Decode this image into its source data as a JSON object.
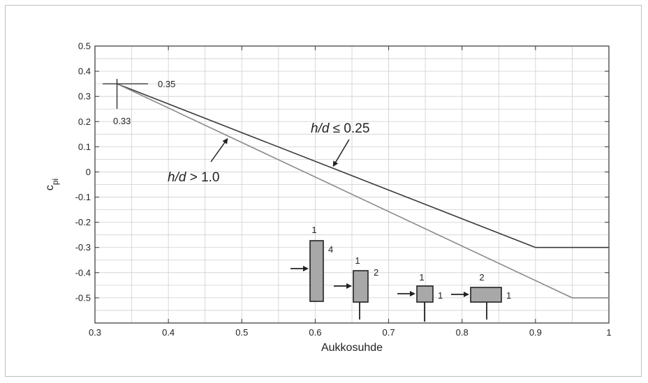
{
  "chart_data": {
    "type": "line",
    "xlabel": "Aukkosuhde",
    "ylabel": "c",
    "ylabel_sub": "pi",
    "xlim": [
      0.3,
      1.0
    ],
    "ylim": [
      -0.6,
      0.5
    ],
    "x_ticks": [
      0.3,
      0.4,
      0.5,
      0.6,
      0.7,
      0.8,
      0.9,
      1.0
    ],
    "x_tick_labels": [
      "0.3",
      "0.4",
      "0.5",
      "0.6",
      "0.7",
      "0.8",
      "0.9",
      "1"
    ],
    "y_ticks": [
      0.5,
      0.4,
      0.3,
      0.2,
      0.1,
      0.0,
      -0.1,
      -0.2,
      -0.3,
      -0.4,
      -0.5
    ],
    "y_tick_labels": [
      "0.5",
      "0.4",
      "0.3",
      "0.2",
      "0.1",
      "0",
      "-0.1",
      "-0.2",
      "-0.3",
      "-0.4",
      "-0.5"
    ],
    "grid": true,
    "series": [
      {
        "name": "h/d ≤ 0.25",
        "label_italic": "h/d",
        "label_rest": " ≤ 0.25",
        "color": "#3a3a3a",
        "x": [
          0.33,
          0.9,
          1.0
        ],
        "y": [
          0.35,
          -0.3,
          -0.3
        ]
      },
      {
        "name": "h/d > 1.0",
        "label_italic": "h/d",
        "label_rest": " > 1.0",
        "color": "#8a8a8a",
        "x": [
          0.33,
          0.95,
          1.0
        ],
        "y": [
          0.35,
          -0.5,
          -0.5
        ]
      }
    ],
    "annotations": [
      {
        "text": "0.35",
        "x": 0.33,
        "y": 0.35
      },
      {
        "text": "0.33",
        "x": 0.33,
        "y": 0.35
      }
    ],
    "insets": [
      {
        "name": "ratio-1-4",
        "top_label": "1",
        "side_label": "4"
      },
      {
        "name": "ratio-1-2",
        "top_label": "1",
        "side_label": "2"
      },
      {
        "name": "ratio-1-1",
        "top_label": "1",
        "side_label": "1"
      },
      {
        "name": "ratio-2-1",
        "top_label": "2",
        "side_label": "1"
      }
    ]
  }
}
